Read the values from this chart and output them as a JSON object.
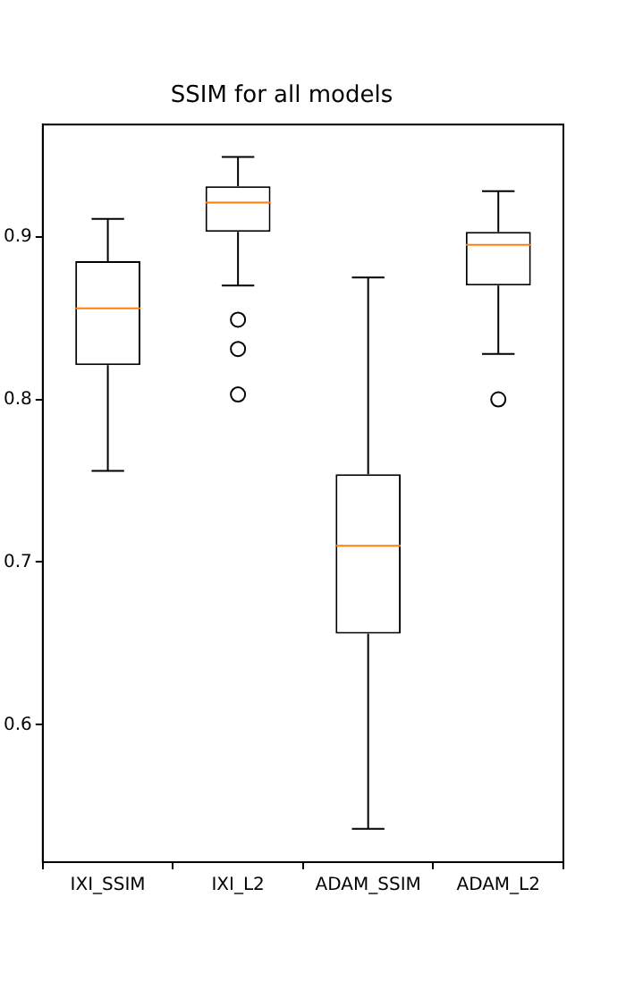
{
  "chart_data": {
    "type": "box",
    "title": "SSIM for all models",
    "categories": [
      "IXI_SSIM",
      "IXI_L2",
      "ADAM_SSIM",
      "ADAM_L2"
    ],
    "boxes": [
      {
        "low": 0.756,
        "q1": 0.821,
        "median": 0.856,
        "q3": 0.885,
        "high": 0.911
      },
      {
        "low": 0.87,
        "q1": 0.903,
        "median": 0.921,
        "q3": 0.931,
        "high": 0.949,
        "outliers": [
          0.849,
          0.831,
          0.803
        ]
      },
      {
        "low": 0.536,
        "q1": 0.656,
        "median": 0.71,
        "q3": 0.754,
        "high": 0.875
      },
      {
        "low": 0.828,
        "q1": 0.87,
        "median": 0.895,
        "q3": 0.903,
        "high": 0.928,
        "outliers": [
          0.8
        ]
      }
    ],
    "color": "#000000",
    "ylim": [
      0.5155,
      0.969
    ],
    "yticks": [
      0.6,
      0.7,
      0.8,
      0.9
    ],
    "grid": false,
    "legend": false
  }
}
